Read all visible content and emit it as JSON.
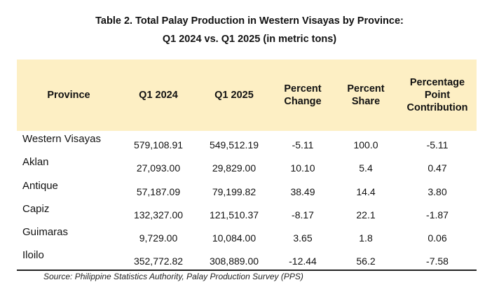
{
  "title_line1": "Table 2. Total Palay Production in Western Visayas by Province:",
  "title_line2": "Q1 2024 vs. Q1 2025 (in metric tons)",
  "headers": [
    "Province",
    "Q1 2024",
    "Q1 2025",
    "Percent Change",
    "Percent Share",
    "Percentage Point Contribution"
  ],
  "header_lines": {
    "percent_change": [
      "Percent",
      "Change"
    ],
    "percent_share": [
      "Percent",
      "Share"
    ],
    "pp_contribution": [
      "Percentage",
      "Point",
      "Contribution"
    ]
  },
  "rows": [
    {
      "province": "Western Visayas",
      "q1_2024": "579,108.91",
      "q1_2025": "549,512.19",
      "pct_change": "-5.11",
      "pct_share": "100.0",
      "pp_contribution": "-5.11"
    },
    {
      "province": "Aklan",
      "q1_2024": "27,093.00",
      "q1_2025": "29,829.00",
      "pct_change": "10.10",
      "pct_share": "5.4",
      "pp_contribution": "0.47"
    },
    {
      "province": "Antique",
      "q1_2024": "57,187.09",
      "q1_2025": "79,199.82",
      "pct_change": "38.49",
      "pct_share": "14.4",
      "pp_contribution": "3.80"
    },
    {
      "province": "Capiz",
      "q1_2024": "132,327.00",
      "q1_2025": "121,510.37",
      "pct_change": "-8.17",
      "pct_share": "22.1",
      "pp_contribution": "-1.87"
    },
    {
      "province": "Guimaras",
      "q1_2024": "9,729.00",
      "q1_2025": "10,084.00",
      "pct_change": "3.65",
      "pct_share": "1.8",
      "pp_contribution": "0.06"
    },
    {
      "province": "Iloilo",
      "q1_2024": "352,772.82",
      "q1_2025": "308,889.00",
      "pct_change": "-12.44",
      "pct_share": "56.2",
      "pp_contribution": "-7.58"
    }
  ],
  "source": "Source: Philippine Statistics Authority, Palay Production Survey (PPS)",
  "colors": {
    "header_bg": "#fdefc4",
    "rule": "#222222"
  }
}
